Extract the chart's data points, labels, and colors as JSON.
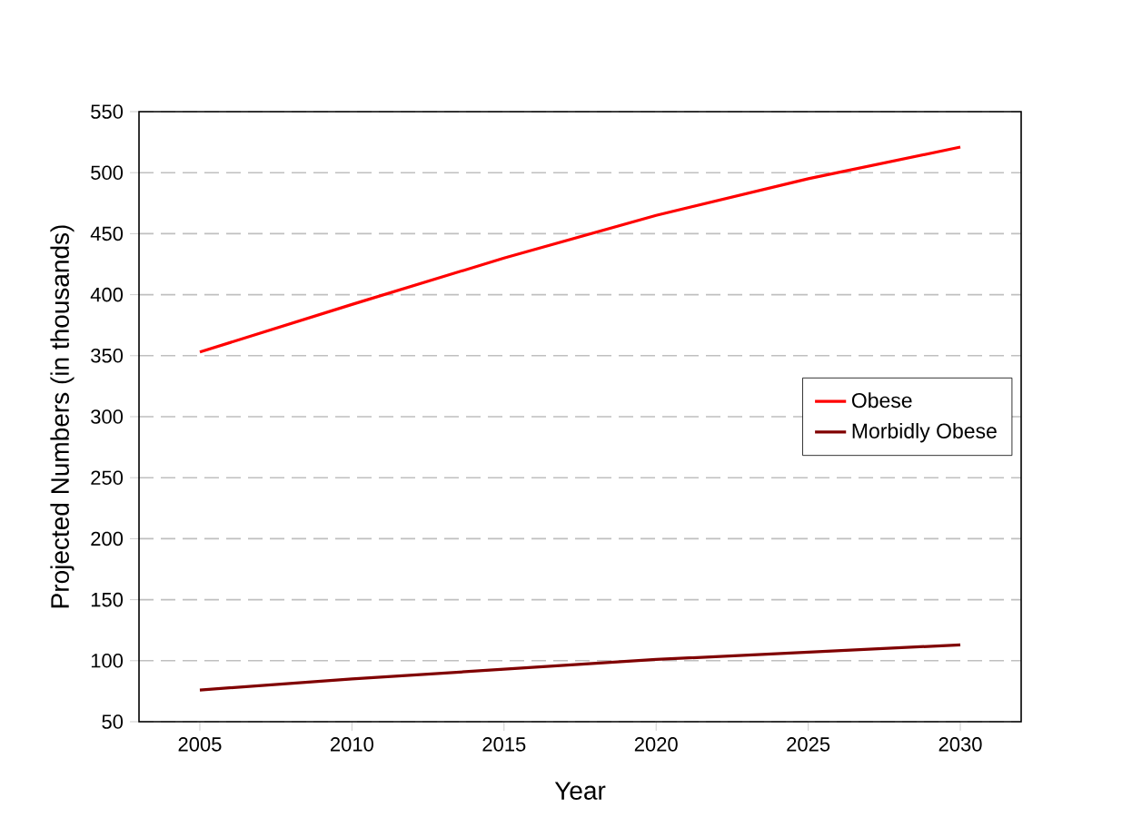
{
  "chart_data": {
    "type": "line",
    "xlabel": "Year",
    "ylabel": "Projected Numbers (in thousands)",
    "x": [
      2005,
      2010,
      2015,
      2020,
      2025,
      2030
    ],
    "series": [
      {
        "name": "Obese",
        "color": "#ff0000",
        "values": [
          353,
          392,
          430,
          465,
          495,
          521
        ]
      },
      {
        "name": "Morbidly Obese",
        "color": "#800000",
        "values": [
          76,
          85,
          93,
          101,
          107,
          113
        ]
      }
    ],
    "xlim": [
      2003,
      2032
    ],
    "xticks": [
      2005,
      2010,
      2015,
      2020,
      2025,
      2030
    ],
    "ylim": [
      50,
      550
    ],
    "yticks": [
      50,
      100,
      150,
      200,
      250,
      300,
      350,
      400,
      450,
      500,
      550
    ],
    "grid": "y",
    "legend": "right",
    "marker": "none",
    "line_style": "solid"
  }
}
